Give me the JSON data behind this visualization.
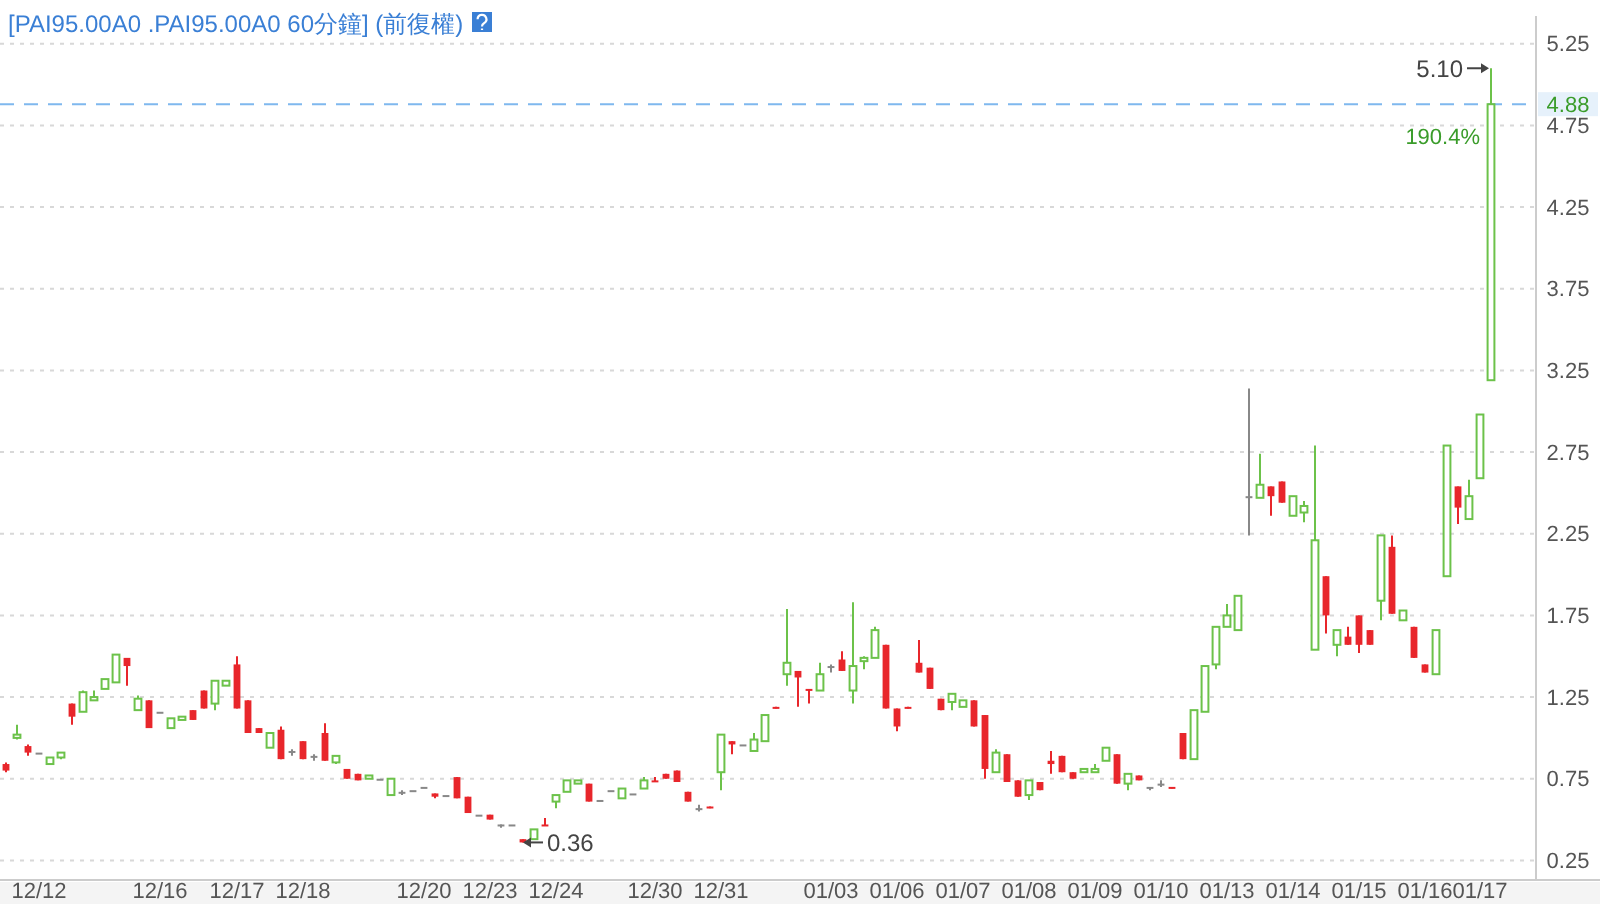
{
  "chart_data": {
    "type": "candlestick",
    "title": "[PAI95.00A0 .PAI95.00A0 60分鐘] (前復權)",
    "categories": [
      null,
      null,
      null,
      "12/12",
      null,
      null,
      null,
      null,
      null,
      null,
      null,
      null,
      null,
      null,
      "12/16",
      null,
      null,
      null,
      null,
      null,
      null,
      "12/17",
      null,
      null,
      null,
      null,
      null,
      "12/18",
      null,
      null,
      null,
      null,
      null,
      null,
      null,
      null,
      null,
      null,
      "12/20",
      null,
      null,
      null,
      null,
      null,
      "12/23",
      null,
      null,
      null,
      null,
      null,
      "12/24",
      null,
      null,
      null,
      null,
      null,
      null,
      null,
      null,
      "12/30",
      null,
      null,
      null,
      null,
      null,
      "12/31",
      null,
      null,
      null,
      null,
      null,
      null,
      null,
      null,
      null,
      "01/03",
      null,
      null,
      null,
      null,
      null,
      "01/06",
      null,
      null,
      null,
      null,
      null,
      "01/07",
      null,
      null,
      null,
      null,
      null,
      "01/08",
      null,
      null,
      null,
      null,
      null,
      "01/09",
      null,
      null,
      null,
      null,
      null,
      "01/10",
      null,
      null,
      null,
      null,
      null,
      "01/13",
      null,
      null,
      null,
      null,
      null,
      "01/14",
      null,
      null,
      null,
      null,
      null,
      "01/15",
      null,
      null,
      null,
      null,
      null,
      "01/16",
      null,
      null,
      null,
      null,
      "01/17",
      null
    ],
    "ohlc": [
      [
        0.84,
        0.85,
        0.79,
        0.8
      ],
      [
        1.0,
        1.08,
        0.99,
        1.02
      ],
      [
        0.95,
        0.96,
        0.89,
        0.91
      ],
      [
        0.91,
        0.91,
        0.91,
        0.91
      ],
      [
        0.84,
        0.88,
        0.84,
        0.88
      ],
      [
        0.88,
        0.91,
        0.87,
        0.91
      ],
      [
        1.21,
        1.21,
        1.08,
        1.13
      ],
      [
        1.16,
        1.29,
        1.16,
        1.28
      ],
      [
        1.23,
        1.29,
        1.23,
        1.25
      ],
      [
        1.3,
        1.36,
        1.3,
        1.36
      ],
      [
        1.34,
        1.51,
        1.34,
        1.51
      ],
      [
        1.49,
        1.49,
        1.32,
        1.44
      ],
      [
        1.17,
        1.26,
        1.17,
        1.24
      ],
      [
        1.23,
        1.23,
        1.06,
        1.06
      ],
      [
        1.16,
        1.16,
        1.16,
        1.16
      ],
      [
        1.06,
        1.12,
        1.06,
        1.12
      ],
      [
        1.11,
        1.13,
        1.11,
        1.13
      ],
      [
        1.17,
        1.17,
        1.11,
        1.11
      ],
      [
        1.29,
        1.29,
        1.18,
        1.18
      ],
      [
        1.21,
        1.35,
        1.17,
        1.35
      ],
      [
        1.32,
        1.35,
        1.32,
        1.35
      ],
      [
        1.45,
        1.5,
        1.18,
        1.18
      ],
      [
        1.23,
        1.23,
        1.03,
        1.03
      ],
      [
        1.06,
        1.06,
        1.03,
        1.03
      ],
      [
        0.94,
        1.03,
        0.94,
        1.03
      ],
      [
        1.05,
        1.07,
        0.87,
        0.87
      ],
      [
        0.92,
        0.93,
        0.89,
        0.92
      ],
      [
        0.98,
        0.98,
        0.87,
        0.87
      ],
      [
        0.89,
        0.9,
        0.86,
        0.89
      ],
      [
        1.03,
        1.09,
        0.86,
        0.86
      ],
      [
        0.85,
        0.89,
        0.84,
        0.89
      ],
      [
        0.81,
        0.81,
        0.75,
        0.75
      ],
      [
        0.78,
        0.78,
        0.74,
        0.74
      ],
      [
        0.75,
        0.77,
        0.75,
        0.77
      ],
      [
        0.75,
        0.75,
        0.75,
        0.75
      ],
      [
        0.65,
        0.75,
        0.65,
        0.75
      ],
      [
        0.67,
        0.68,
        0.65,
        0.67
      ],
      [
        0.68,
        0.68,
        0.68,
        0.68
      ],
      [
        0.7,
        0.7,
        0.7,
        0.7
      ],
      [
        0.66,
        0.66,
        0.63,
        0.64
      ],
      [
        0.65,
        0.65,
        0.65,
        0.65
      ],
      [
        0.76,
        0.76,
        0.63,
        0.63
      ],
      [
        0.64,
        0.64,
        0.54,
        0.54
      ],
      [
        0.53,
        0.53,
        0.53,
        0.53
      ],
      [
        0.53,
        0.53,
        0.5,
        0.5
      ],
      [
        0.47,
        0.47,
        0.45,
        0.47
      ],
      [
        0.47,
        0.47,
        0.47,
        0.47
      ],
      [
        0.38,
        0.38,
        0.36,
        0.36
      ],
      [
        0.38,
        0.44,
        0.38,
        0.44
      ],
      [
        0.47,
        0.51,
        0.46,
        0.46
      ],
      [
        0.61,
        0.65,
        0.57,
        0.65
      ],
      [
        0.67,
        0.74,
        0.67,
        0.74
      ],
      [
        0.72,
        0.74,
        0.72,
        0.74
      ],
      [
        0.72,
        0.72,
        0.61,
        0.61
      ],
      [
        0.62,
        0.62,
        0.62,
        0.62
      ],
      [
        0.68,
        0.68,
        0.68,
        0.68
      ],
      [
        0.63,
        0.69,
        0.63,
        0.69
      ],
      [
        0.66,
        0.66,
        0.66,
        0.66
      ],
      [
        0.69,
        0.76,
        0.69,
        0.74
      ],
      [
        0.74,
        0.76,
        0.73,
        0.73
      ],
      [
        0.78,
        0.78,
        0.75,
        0.75
      ],
      [
        0.8,
        0.8,
        0.73,
        0.73
      ],
      [
        0.67,
        0.67,
        0.61,
        0.61
      ],
      [
        0.57,
        0.59,
        0.55,
        0.57
      ],
      [
        0.58,
        0.58,
        0.57,
        0.57
      ],
      [
        0.79,
        1.02,
        0.68,
        1.02
      ],
      [
        0.98,
        0.98,
        0.9,
        0.96
      ],
      [
        0.96,
        0.96,
        0.96,
        0.96
      ],
      [
        0.92,
        1.03,
        0.92,
        0.99
      ],
      [
        0.98,
        1.14,
        0.98,
        1.14
      ],
      [
        1.19,
        1.19,
        1.18,
        1.18
      ],
      [
        1.39,
        1.79,
        1.32,
        1.46
      ],
      [
        1.41,
        1.41,
        1.19,
        1.37
      ],
      [
        1.3,
        1.3,
        1.21,
        1.29
      ],
      [
        1.29,
        1.46,
        1.29,
        1.39
      ],
      [
        1.44,
        1.45,
        1.4,
        1.44
      ],
      [
        1.48,
        1.53,
        1.41,
        1.41
      ],
      [
        1.29,
        1.83,
        1.21,
        1.44
      ],
      [
        1.47,
        1.5,
        1.42,
        1.49
      ],
      [
        1.49,
        1.68,
        1.49,
        1.66
      ],
      [
        1.57,
        1.57,
        1.18,
        1.18
      ],
      [
        1.18,
        1.18,
        1.04,
        1.07
      ],
      [
        1.19,
        1.19,
        1.18,
        1.18
      ],
      [
        1.46,
        1.6,
        1.4,
        1.4
      ],
      [
        1.43,
        1.43,
        1.3,
        1.3
      ],
      [
        1.24,
        1.24,
        1.17,
        1.17
      ],
      [
        1.22,
        1.27,
        1.17,
        1.27
      ],
      [
        1.19,
        1.23,
        1.19,
        1.23
      ],
      [
        1.23,
        1.23,
        1.07,
        1.07
      ],
      [
        1.14,
        1.14,
        0.75,
        0.81
      ],
      [
        0.79,
        0.93,
        0.79,
        0.91
      ],
      [
        0.9,
        0.9,
        0.73,
        0.73
      ],
      [
        0.74,
        0.74,
        0.64,
        0.64
      ],
      [
        0.65,
        0.74,
        0.62,
        0.74
      ],
      [
        0.73,
        0.73,
        0.68,
        0.68
      ],
      [
        0.86,
        0.92,
        0.78,
        0.84
      ],
      [
        0.89,
        0.89,
        0.79,
        0.79
      ],
      [
        0.79,
        0.79,
        0.75,
        0.75
      ],
      [
        0.79,
        0.81,
        0.79,
        0.81
      ],
      [
        0.79,
        0.84,
        0.79,
        0.81
      ],
      [
        0.86,
        0.94,
        0.86,
        0.94
      ],
      [
        0.9,
        0.9,
        0.72,
        0.72
      ],
      [
        0.72,
        0.78,
        0.68,
        0.78
      ],
      [
        0.77,
        0.77,
        0.74,
        0.74
      ],
      [
        0.7,
        0.7,
        0.68,
        0.7
      ],
      [
        0.72,
        0.74,
        0.7,
        0.72
      ],
      [
        0.7,
        0.7,
        0.69,
        0.69
      ],
      [
        1.03,
        1.03,
        0.87,
        0.87
      ],
      [
        0.87,
        1.17,
        0.87,
        1.17
      ],
      [
        1.16,
        1.44,
        1.16,
        1.44
      ],
      [
        1.45,
        1.68,
        1.42,
        1.68
      ],
      [
        1.68,
        1.82,
        1.68,
        1.75
      ],
      [
        1.66,
        1.87,
        1.66,
        1.87
      ],
      [
        2.48,
        3.14,
        2.24,
        2.48
      ],
      [
        2.47,
        2.74,
        2.47,
        2.55
      ],
      [
        2.54,
        2.54,
        2.36,
        2.48
      ],
      [
        2.57,
        2.57,
        2.44,
        2.44
      ],
      [
        2.36,
        2.48,
        2.36,
        2.48
      ],
      [
        2.38,
        2.45,
        2.32,
        2.42
      ],
      [
        1.54,
        2.79,
        1.54,
        2.21
      ],
      [
        1.99,
        1.99,
        1.64,
        1.75
      ],
      [
        1.57,
        1.66,
        1.5,
        1.66
      ],
      [
        1.62,
        1.68,
        1.57,
        1.57
      ],
      [
        1.75,
        1.75,
        1.52,
        1.57
      ],
      [
        1.66,
        1.66,
        1.57,
        1.57
      ],
      [
        1.84,
        2.24,
        1.72,
        2.24
      ],
      [
        2.17,
        2.24,
        1.76,
        1.76
      ],
      [
        1.72,
        1.78,
        1.72,
        1.78
      ],
      [
        1.68,
        1.68,
        1.49,
        1.49
      ],
      [
        1.45,
        1.45,
        1.4,
        1.4
      ],
      [
        1.39,
        1.66,
        1.39,
        1.66
      ],
      [
        1.99,
        2.79,
        1.99,
        2.79
      ],
      [
        2.54,
        2.54,
        2.31,
        2.41
      ],
      [
        2.34,
        2.58,
        2.34,
        2.48
      ],
      [
        2.59,
        2.98,
        2.59,
        2.98
      ],
      [
        3.19,
        5.1,
        3.19,
        4.88
      ]
    ],
    "colors": [
      "#e8262b",
      "#6cc24a",
      "#e8262b",
      "#888888",
      "#6cc24a",
      "#6cc24a",
      "#e8262b",
      "#6cc24a",
      "#6cc24a",
      "#6cc24a",
      "#6cc24a",
      "#e8262b",
      "#6cc24a",
      "#e8262b",
      "#888888",
      "#6cc24a",
      "#6cc24a",
      "#e8262b",
      "#e8262b",
      "#6cc24a",
      "#6cc24a",
      "#e8262b",
      "#e8262b",
      "#e8262b",
      "#6cc24a",
      "#e8262b",
      "#888888",
      "#e8262b",
      "#888888",
      "#e8262b",
      "#6cc24a",
      "#e8262b",
      "#e8262b",
      "#6cc24a",
      "#888888",
      "#6cc24a",
      "#888888",
      "#888888",
      "#888888",
      "#e8262b",
      "#888888",
      "#e8262b",
      "#e8262b",
      "#888888",
      "#e8262b",
      "#888888",
      "#888888",
      "#e8262b",
      "#6cc24a",
      "#e8262b",
      "#6cc24a",
      "#6cc24a",
      "#6cc24a",
      "#e8262b",
      "#888888",
      "#888888",
      "#6cc24a",
      "#888888",
      "#6cc24a",
      "#e8262b",
      "#e8262b",
      "#e8262b",
      "#e8262b",
      "#888888",
      "#e8262b",
      "#6cc24a",
      "#e8262b",
      "#888888",
      "#6cc24a",
      "#6cc24a",
      "#e8262b",
      "#6cc24a",
      "#e8262b",
      "#e8262b",
      "#6cc24a",
      "#888888",
      "#e8262b",
      "#6cc24a",
      "#6cc24a",
      "#6cc24a",
      "#e8262b",
      "#e8262b",
      "#e8262b",
      "#e8262b",
      "#e8262b",
      "#e8262b",
      "#6cc24a",
      "#6cc24a",
      "#e8262b",
      "#e8262b",
      "#6cc24a",
      "#e8262b",
      "#e8262b",
      "#6cc24a",
      "#e8262b",
      "#e8262b",
      "#e8262b",
      "#e8262b",
      "#6cc24a",
      "#6cc24a",
      "#6cc24a",
      "#e8262b",
      "#6cc24a",
      "#e8262b",
      "#888888",
      "#888888",
      "#e8262b",
      "#e8262b",
      "#6cc24a",
      "#6cc24a",
      "#6cc24a",
      "#6cc24a",
      "#6cc24a",
      "#888888",
      "#6cc24a",
      "#e8262b",
      "#e8262b",
      "#6cc24a",
      "#6cc24a",
      "#6cc24a",
      "#e8262b",
      "#6cc24a",
      "#e8262b",
      "#e8262b",
      "#e8262b",
      "#6cc24a",
      "#e8262b",
      "#6cc24a",
      "#e8262b",
      "#e8262b",
      "#6cc24a",
      "#6cc24a",
      "#e8262b",
      "#6cc24a",
      "#6cc24a",
      "#6cc24a"
    ],
    "ylim": [
      0.13,
      5.42
    ],
    "yticks": [
      0.25,
      0.75,
      1.25,
      1.75,
      2.25,
      2.75,
      3.25,
      3.75,
      4.25,
      4.75,
      5.25
    ],
    "grid": "y",
    "ref_lines": [
      {
        "axis": "y",
        "value": 4.88,
        "label": "4.88",
        "color": "#7fb8ee",
        "line_style": "dashed"
      }
    ],
    "annotations": [
      "0.36",
      "5.10",
      "190.4%"
    ]
  }
}
